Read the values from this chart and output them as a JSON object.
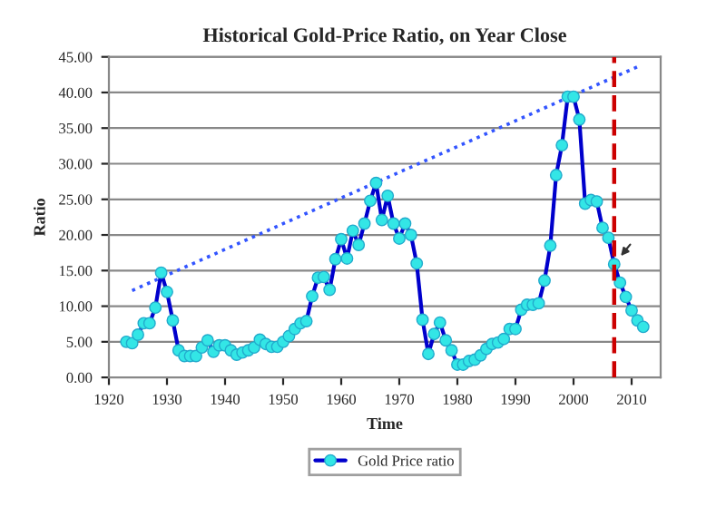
{
  "chart_data": {
    "type": "line",
    "title": "Historical Gold-Price Ratio, on Year Close",
    "xlabel": "Time",
    "ylabel": "Ratio",
    "xlim": [
      1920,
      2015
    ],
    "xticks": [
      1920,
      1930,
      1940,
      1950,
      1960,
      1970,
      1980,
      1990,
      2000,
      2010
    ],
    "ylim": [
      0,
      45
    ],
    "yticks": [
      {
        "value": 0,
        "label": "0.00"
      },
      {
        "value": 5,
        "label": "5.00"
      },
      {
        "value": 10,
        "label": "10.00"
      },
      {
        "value": 15,
        "label": "15.00"
      },
      {
        "value": 20,
        "label": "20.00"
      },
      {
        "value": 25,
        "label": "25.00"
      },
      {
        "value": 30,
        "label": "30.00"
      },
      {
        "value": 35,
        "label": "35.00"
      },
      {
        "value": 40,
        "label": "40.00"
      },
      {
        "value": 45,
        "label": "45.00"
      }
    ],
    "grid": "y",
    "legend": "bottom",
    "series": [
      {
        "name": "Gold Price ratio",
        "color": "#0000cc",
        "marker": "circle",
        "line_style": "solid",
        "x": [
          1923,
          1924,
          1925,
          1926,
          1927,
          1928,
          1929,
          1930,
          1931,
          1932,
          1933,
          1934,
          1935,
          1936,
          1937,
          1938,
          1939,
          1940,
          1941,
          1942,
          1943,
          1944,
          1945,
          1946,
          1947,
          1948,
          1949,
          1950,
          1951,
          1952,
          1953,
          1954,
          1955,
          1956,
          1957,
          1958,
          1959,
          1960,
          1961,
          1962,
          1963,
          1964,
          1965,
          1966,
          1967,
          1968,
          1969,
          1970,
          1971,
          1972,
          1973,
          1974,
          1975,
          1976,
          1977,
          1978,
          1979,
          1980,
          1981,
          1982,
          1983,
          1984,
          1985,
          1986,
          1987,
          1988,
          1989,
          1990,
          1991,
          1992,
          1993,
          1994,
          1995,
          1996,
          1997,
          1998,
          1999,
          2000,
          2001,
          2002,
          2003,
          2004,
          2005,
          2006,
          2007,
          2008,
          2009,
          2010,
          2011,
          2012
        ],
        "values": [
          5,
          4.8,
          6,
          7.6,
          7.6,
          9.8,
          14.7,
          12,
          8,
          3.8,
          3,
          3,
          3,
          4.2,
          5.2,
          3.6,
          4.5,
          4.5,
          3.8,
          3.2,
          3.5,
          3.8,
          4.2,
          5.3,
          4.7,
          4.3,
          4.3,
          5,
          5.8,
          6.8,
          7.6,
          7.9,
          11.4,
          14,
          14.1,
          12.3,
          16.6,
          19.4,
          16.7,
          20.6,
          18.6,
          21.6,
          24.8,
          27.3,
          22.1,
          25.5,
          21.6,
          19.5,
          21.6,
          20,
          16,
          8.1,
          3.3,
          6.1,
          7.7,
          5.2,
          3.8,
          1.8,
          1.8,
          2.3,
          2.5,
          3.1,
          4,
          4.7,
          4.9,
          5.4,
          6.8,
          6.8,
          9.5,
          10.2,
          10.2,
          10.4,
          13.6,
          18.5,
          28.4,
          32.6,
          39.4,
          39.4,
          36.2,
          24.4,
          24.9,
          24.7,
          21,
          19.6,
          15.9,
          13.3,
          11.3,
          9.4,
          8,
          7.1
        ]
      },
      {
        "type": "line",
        "color": "#3355ff",
        "marker": "none",
        "line_style": "dotted",
        "x": [
          1924,
          2011
        ],
        "values": [
          12.2,
          43.6
        ]
      }
    ],
    "ref_lines": [
      {
        "axis": "x",
        "value": 2007,
        "color": "#cc0000",
        "line_style": "dashed"
      }
    ]
  }
}
